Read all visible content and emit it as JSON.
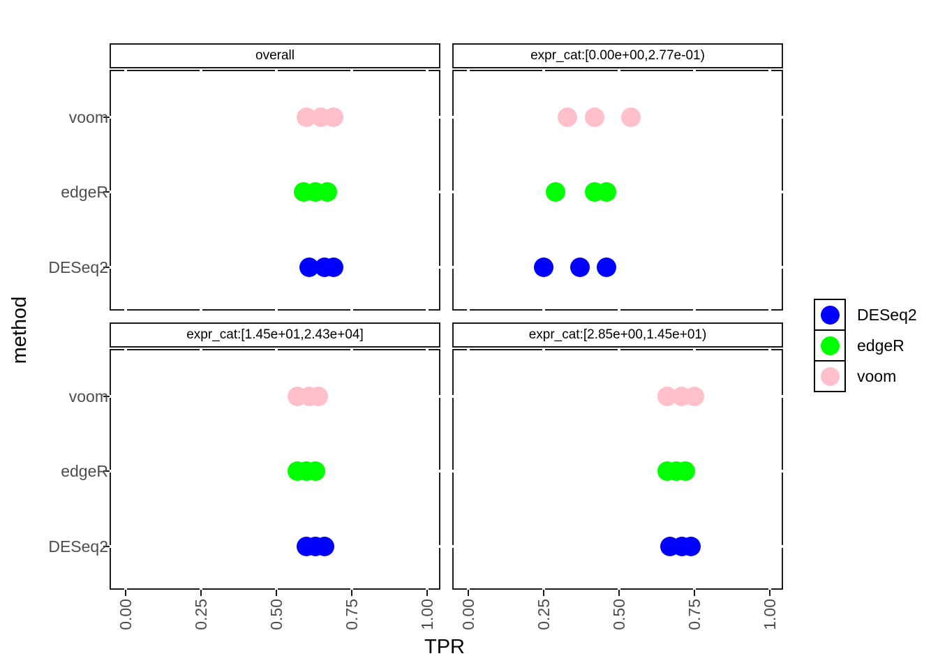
{
  "chart_data": {
    "type": "scatter",
    "xlabel": "TPR",
    "ylabel": "method",
    "xlim": [
      0,
      1
    ],
    "grid": "off",
    "x_tick_labels": [
      "0.00",
      "0.25",
      "0.50",
      "0.75",
      "1.00"
    ],
    "x_tick_values": [
      0,
      0.25,
      0.5,
      0.75,
      1
    ],
    "y_categories": [
      "voom",
      "edgeR",
      "DESeq2"
    ],
    "colors": {
      "DESeq2": "#0000ff",
      "edgeR": "#00ff00",
      "voom": "#ffc0cb"
    },
    "facets": [
      {
        "title": "overall",
        "series": [
          {
            "name": "voom",
            "tpr": [
              0.6,
              0.65,
              0.69
            ]
          },
          {
            "name": "edgeR",
            "tpr": [
              0.59,
              0.63,
              0.67
            ]
          },
          {
            "name": "DESeq2",
            "tpr": [
              0.61,
              0.66,
              0.69
            ]
          }
        ]
      },
      {
        "title": "expr_cat:[0.00e+00,2.77e-01)",
        "series": [
          {
            "name": "voom",
            "tpr": [
              0.33,
              0.42,
              0.54
            ]
          },
          {
            "name": "edgeR",
            "tpr": [
              0.29,
              0.42,
              0.46
            ]
          },
          {
            "name": "DESeq2",
            "tpr": [
              0.25,
              0.37,
              0.46
            ]
          }
        ]
      },
      {
        "title": "expr_cat:[1.45e+01,2.43e+04]",
        "series": [
          {
            "name": "voom",
            "tpr": [
              0.57,
              0.61,
              0.64
            ]
          },
          {
            "name": "edgeR",
            "tpr": [
              0.57,
              0.6,
              0.63
            ]
          },
          {
            "name": "DESeq2",
            "tpr": [
              0.6,
              0.63,
              0.66
            ]
          }
        ]
      },
      {
        "title": "expr_cat:[2.85e+00,1.45e+01)",
        "series": [
          {
            "name": "voom",
            "tpr": [
              0.66,
              0.71,
              0.75
            ]
          },
          {
            "name": "edgeR",
            "tpr": [
              0.66,
              0.69,
              0.72
            ]
          },
          {
            "name": "DESeq2",
            "tpr": [
              0.67,
              0.71,
              0.74
            ]
          }
        ]
      }
    ],
    "legend": {
      "position": "right",
      "entries": [
        {
          "label": "DESeq2",
          "color": "#0000ff"
        },
        {
          "label": "edgeR",
          "color": "#00ff00"
        },
        {
          "label": "voom",
          "color": "#ffc0cb"
        }
      ]
    }
  }
}
